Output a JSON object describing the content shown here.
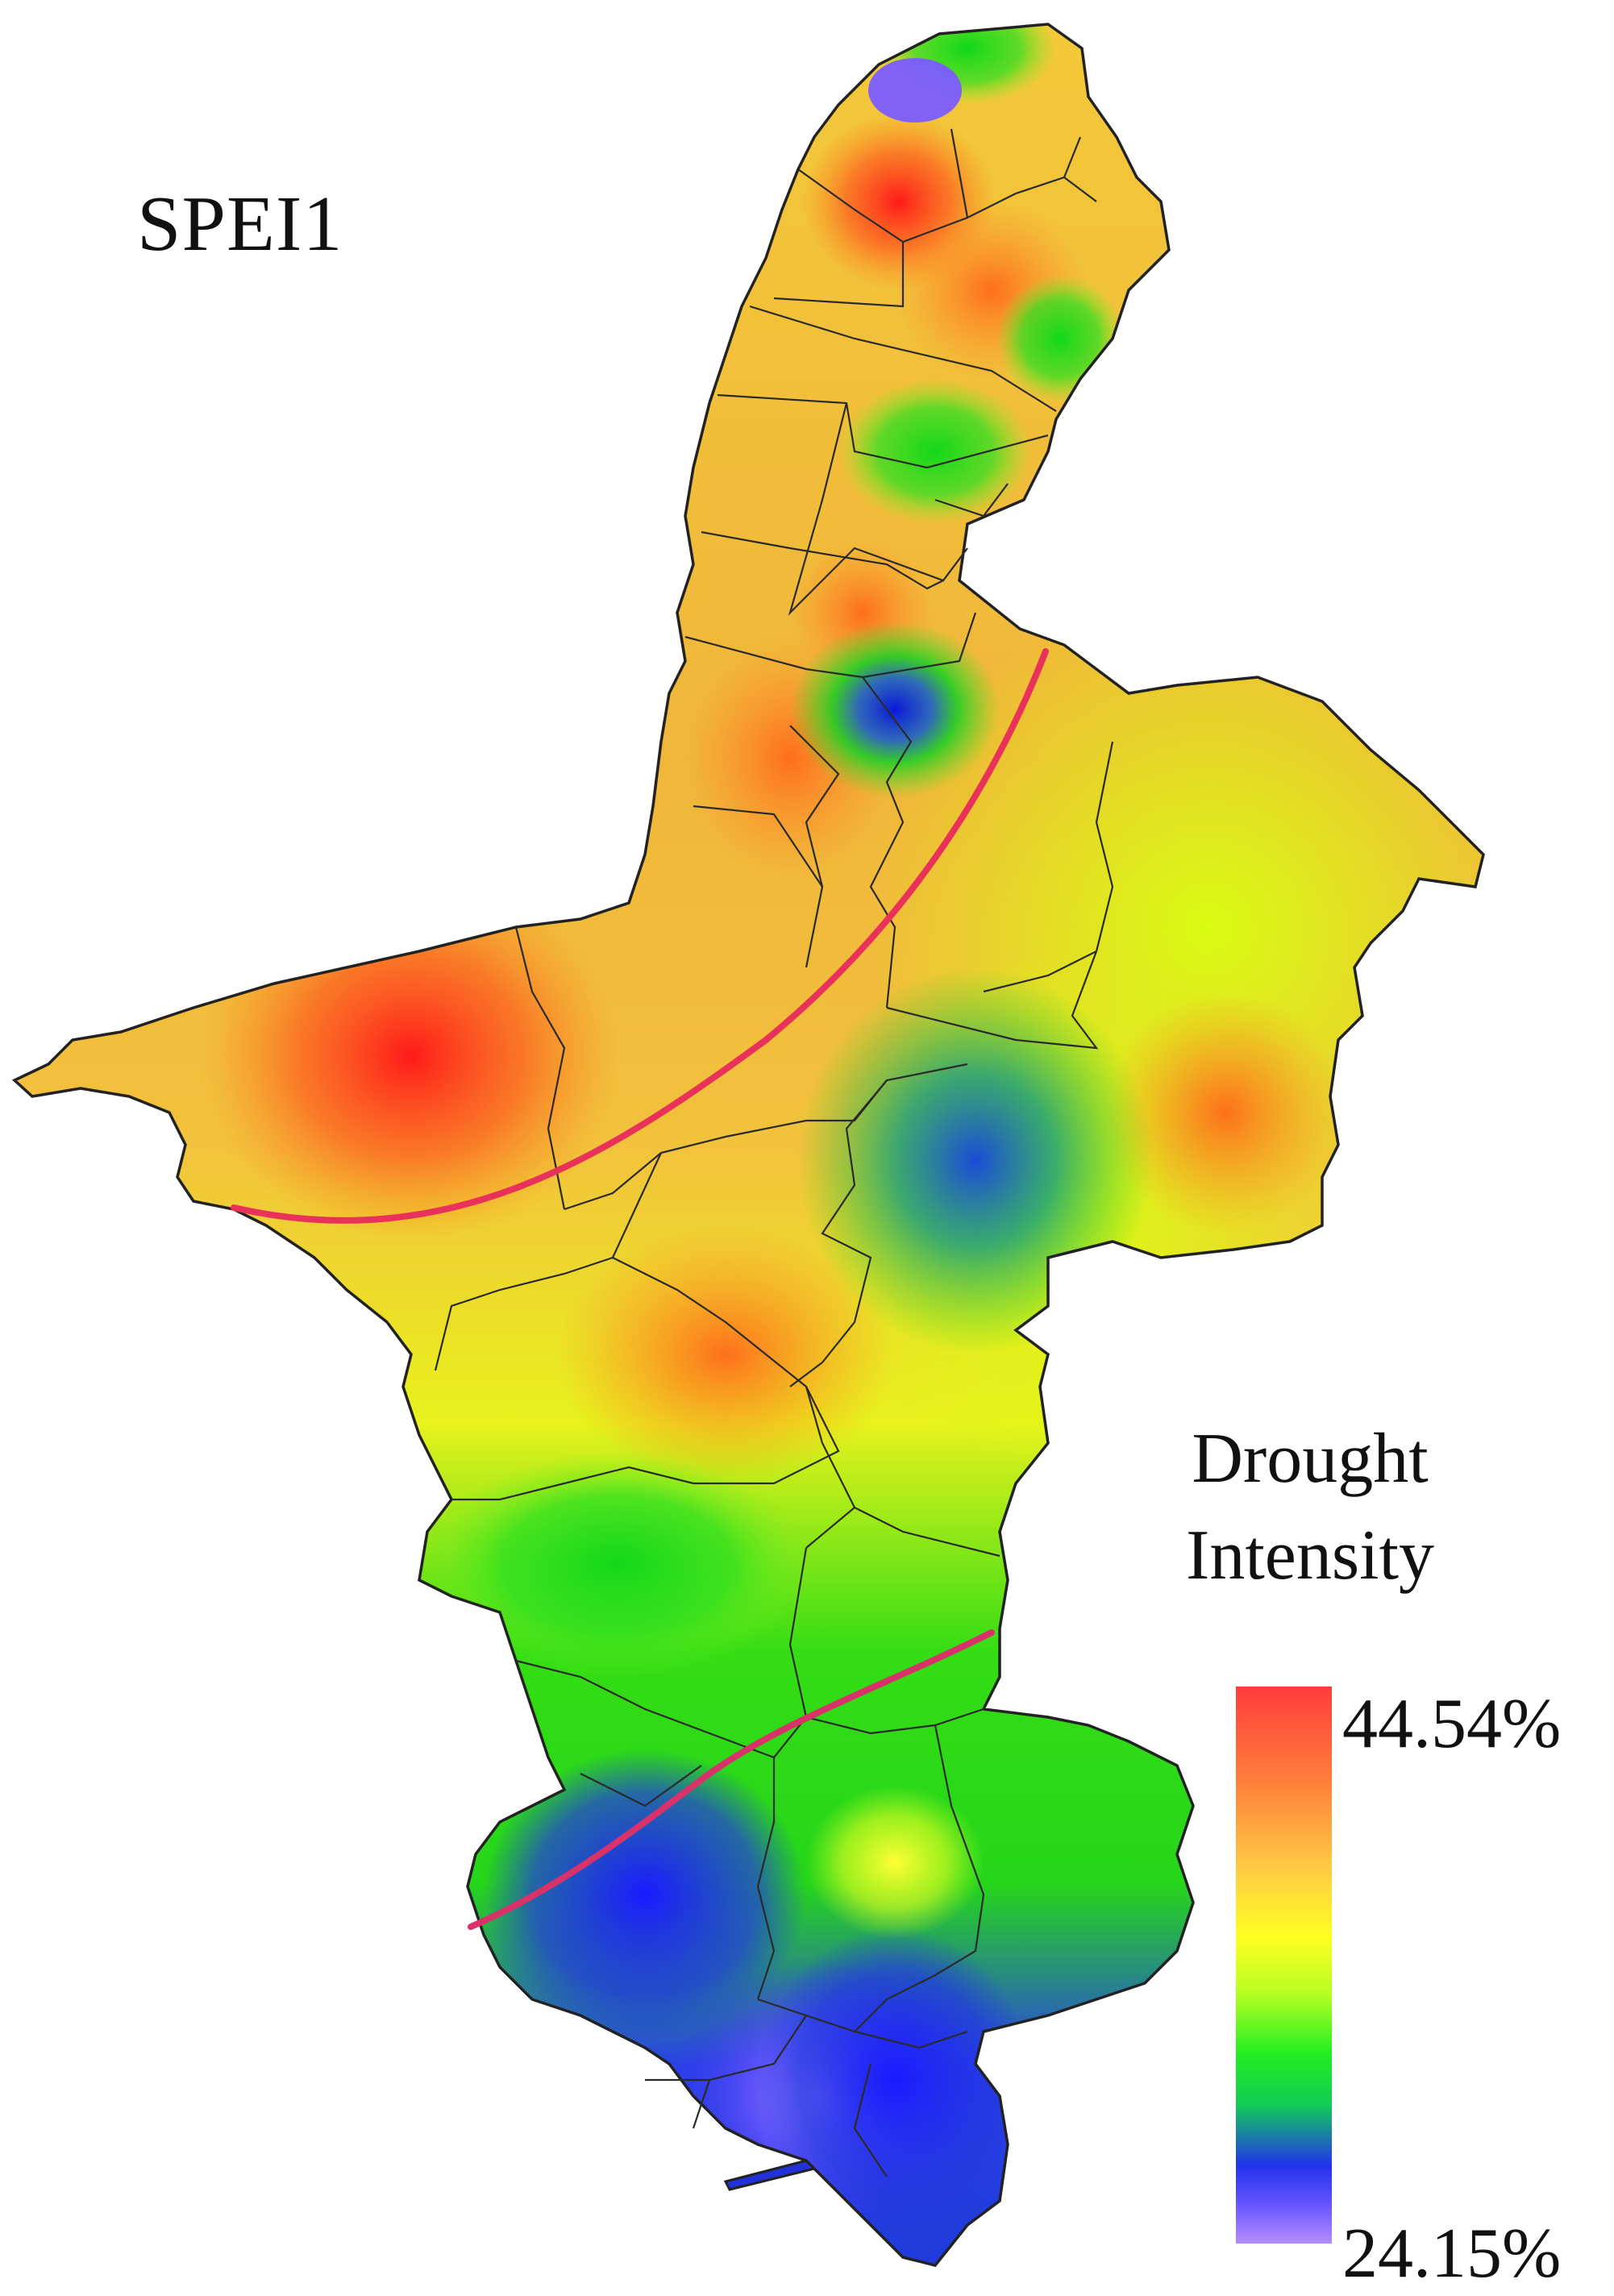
{
  "title": "SPEI1",
  "legend": {
    "title_line1": "Drought",
    "title_line2": "Intensity",
    "max_label": "44.54%",
    "min_label": "24.15%",
    "max_value": 44.54,
    "min_value": 24.15,
    "unit": "%",
    "colors": [
      "#9b7bff",
      "#3333ff",
      "#1a1aff",
      "#00cc22",
      "#22ee11",
      "#ccff00",
      "#ffff00",
      "#ffcc33",
      "#ff9933",
      "#ff4422"
    ]
  },
  "boundary_lines": {
    "color": "#e8325a"
  }
}
